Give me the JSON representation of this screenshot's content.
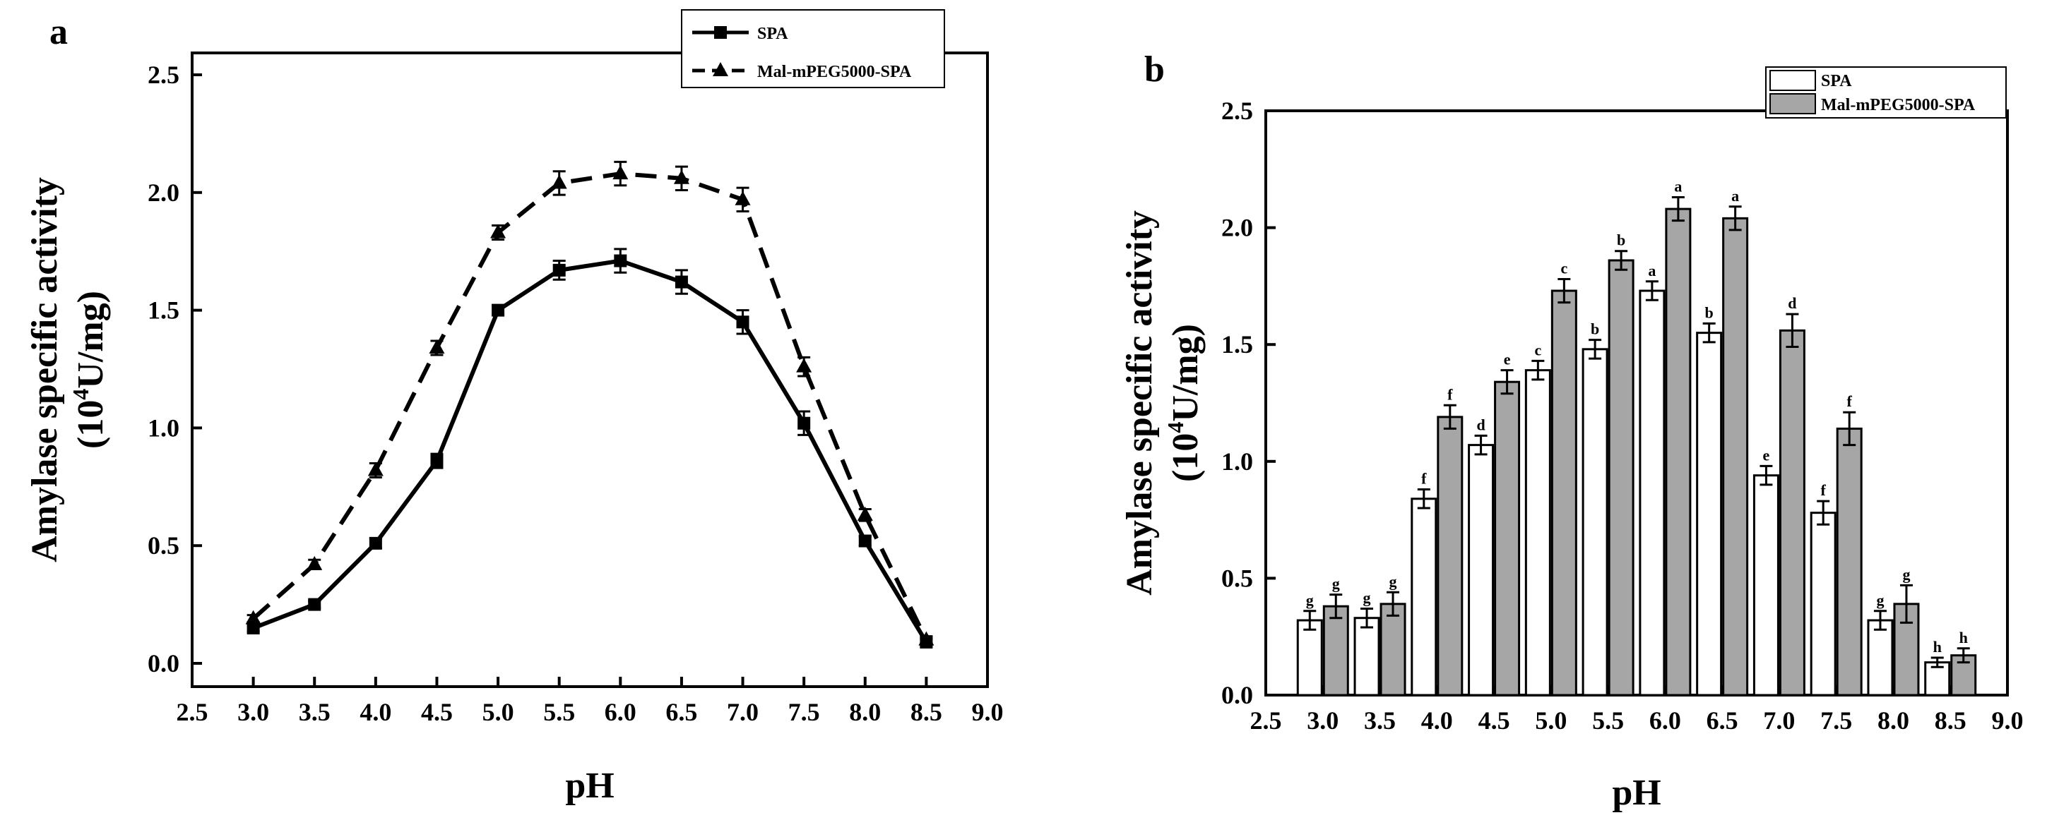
{
  "chart_data": [
    {
      "panel": "a",
      "type": "line",
      "xlabel": "pH",
      "ylabel_line1": "Amylase specific activity",
      "ylabel_line2_pre": "(10",
      "ylabel_line2_sup": "4",
      "ylabel_line2_post": "U/mg)",
      "xlim": [
        2.5,
        9.0
      ],
      "ylim": [
        -0.1,
        2.5
      ],
      "xticks": [
        "2.5",
        "3.0",
        "3.5",
        "4.0",
        "4.5",
        "5.0",
        "5.5",
        "6.0",
        "6.5",
        "7.0",
        "7.5",
        "8.0",
        "8.5",
        "9.0"
      ],
      "yticks": [
        "0.0",
        "0.5",
        "1.0",
        "1.5",
        "2.0",
        "2.5"
      ],
      "x": [
        3.0,
        3.5,
        4.0,
        4.5,
        5.0,
        5.5,
        6.0,
        6.5,
        7.0,
        7.5,
        8.0,
        8.5
      ],
      "legend_position": "top-right",
      "series": [
        {
          "name": "SPA",
          "style": "solid",
          "marker": "square",
          "values": [
            0.15,
            0.25,
            0.51,
            0.86,
            1.5,
            1.67,
            1.71,
            1.62,
            1.45,
            1.02,
            0.52,
            0.09
          ],
          "errors": [
            0.015,
            0.015,
            0.02,
            0.03,
            0.02,
            0.04,
            0.05,
            0.05,
            0.05,
            0.05,
            0.02,
            0.015
          ]
        },
        {
          "name": "Mal-mPEG5000-SPA",
          "style": "dashed",
          "marker": "triangle",
          "values": [
            0.19,
            0.42,
            0.82,
            1.34,
            1.83,
            2.04,
            2.08,
            2.06,
            1.97,
            1.26,
            0.63,
            0.1
          ],
          "errors": [
            0.015,
            0.02,
            0.03,
            0.03,
            0.03,
            0.05,
            0.05,
            0.05,
            0.05,
            0.04,
            0.025,
            0.015
          ]
        }
      ]
    },
    {
      "panel": "b",
      "type": "bar",
      "xlabel": "pH",
      "ylabel_line1": "Amylase specific activity",
      "ylabel_line2_pre": "(10",
      "ylabel_line2_sup": "4",
      "ylabel_line2_post": "U/mg)",
      "xlim": [
        2.5,
        9.0
      ],
      "ylim": [
        0.0,
        2.5
      ],
      "xticks": [
        "2.5",
        "3.0",
        "3.5",
        "4.0",
        "4.5",
        "5.0",
        "5.5",
        "6.0",
        "6.5",
        "7.0",
        "7.5",
        "8.0",
        "8.5",
        "9.0"
      ],
      "yticks": [
        "0.0",
        "0.5",
        "1.0",
        "1.5",
        "2.0",
        "2.5"
      ],
      "categories": [
        3.0,
        3.5,
        4.0,
        4.5,
        5.0,
        5.5,
        6.0,
        6.5,
        7.0,
        7.5,
        8.0,
        8.5
      ],
      "legend_position": "top-right",
      "series": [
        {
          "name": "SPA",
          "color": "#ffffff",
          "values": [
            0.32,
            0.33,
            0.84,
            1.07,
            1.39,
            1.48,
            1.73,
            1.55,
            0.94,
            0.78,
            0.32,
            0.14
          ],
          "errors": [
            0.04,
            0.04,
            0.04,
            0.04,
            0.04,
            0.04,
            0.04,
            0.04,
            0.04,
            0.05,
            0.04,
            0.02
          ],
          "labels": [
            "g",
            "g",
            "f",
            "d",
            "c",
            "b",
            "a",
            "b",
            "e",
            "f",
            "g",
            "h"
          ]
        },
        {
          "name": "Mal-mPEG5000-SPA",
          "color": "#a6a6a6",
          "values": [
            0.38,
            0.39,
            1.19,
            1.34,
            1.73,
            1.86,
            2.08,
            2.04,
            1.56,
            1.14,
            0.39,
            0.17
          ],
          "errors": [
            0.05,
            0.05,
            0.05,
            0.05,
            0.05,
            0.04,
            0.05,
            0.05,
            0.07,
            0.07,
            0.08,
            0.03
          ],
          "labels": [
            "g",
            "g",
            "f",
            "e",
            "c",
            "b",
            "a",
            "a",
            "d",
            "f",
            "g",
            "h"
          ]
        }
      ]
    }
  ]
}
